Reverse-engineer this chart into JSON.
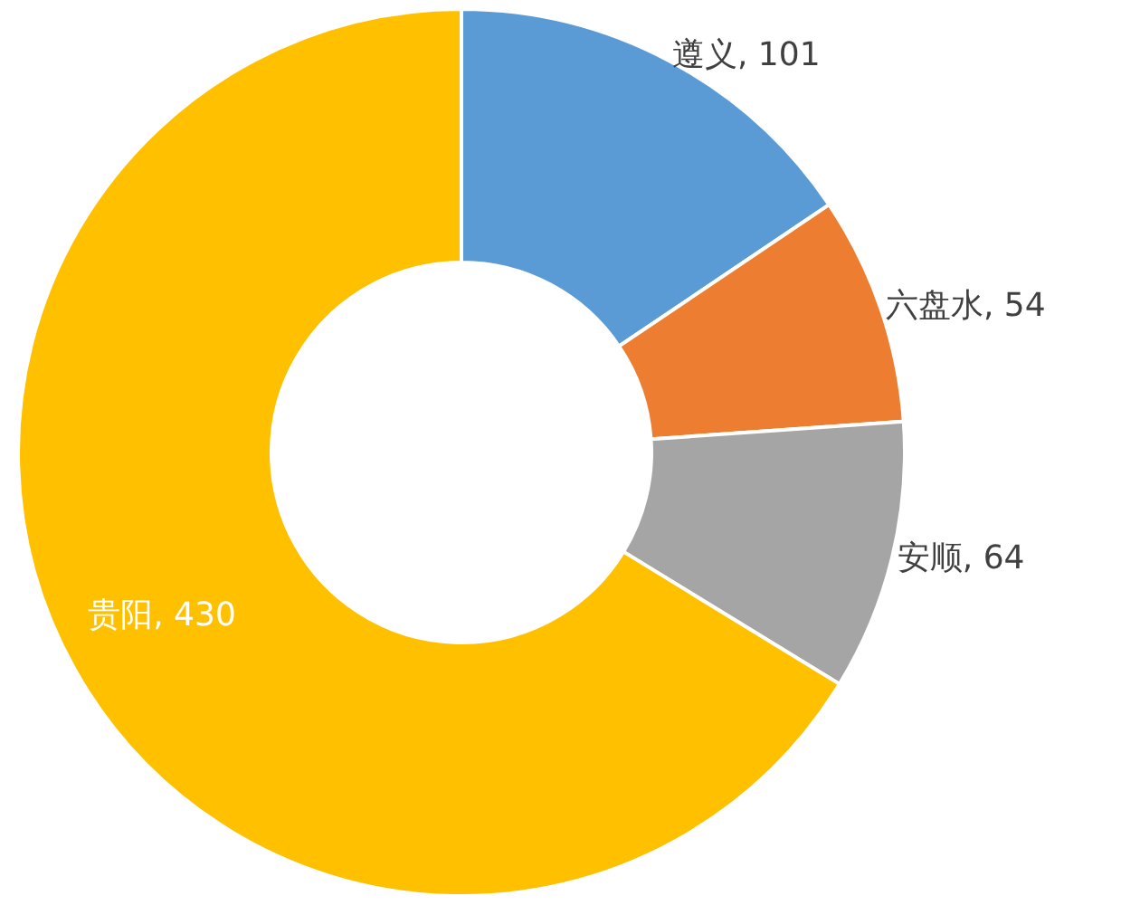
{
  "chart_data": {
    "type": "donut",
    "categories": [
      "遵义",
      "六盘水",
      "安顺",
      "贵阳"
    ],
    "values": [
      101,
      54,
      64,
      430
    ],
    "colors": [
      "#5b9bd5",
      "#ed7d31",
      "#a5a5a5",
      "#ffc000"
    ],
    "value_labels": [
      ", 101",
      ", 54",
      ", 64",
      ", 430"
    ]
  }
}
